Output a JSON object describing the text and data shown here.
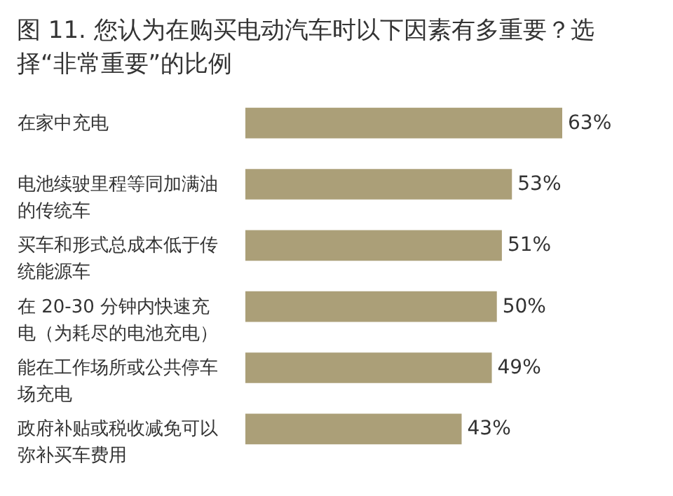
{
  "chart_data": {
    "type": "bar",
    "orientation": "horizontal",
    "title": "图 11. 您认为在购买电动汽车时以下因素有多重要？选择“非常重要”的比例",
    "categories": [
      "在家中充电",
      "电池续驶里程等同加满油的传统车",
      "买车和形式总成本低于传统能源车",
      "在 20-30 分钟内快速充电（为耗尽的电池充电）",
      "能在工作场所或公共停车场充电",
      "政府补贴或税收减免可以弥补买车费用"
    ],
    "values": [
      63,
      53,
      51,
      50,
      49,
      43
    ],
    "value_labels": [
      "63%",
      "53%",
      "51%",
      "50%",
      "49%",
      "43%"
    ],
    "color": "#ab9f78"
  }
}
